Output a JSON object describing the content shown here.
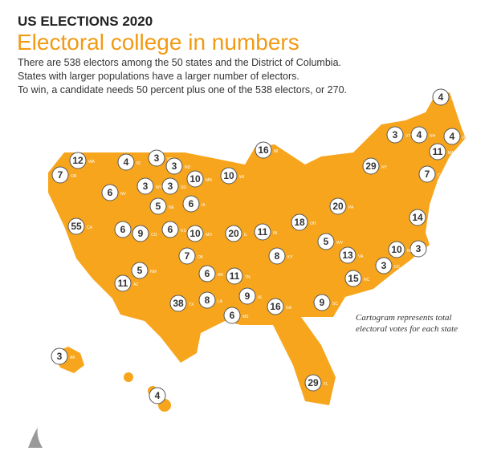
{
  "header": {
    "kicker": "US ELECTIONS 2020",
    "title": "Electoral college in numbers",
    "description": [
      "There are 538 electors among the 50 states and the District of Columbia.",
      "States with larger populations have a larger number of electors.",
      "To win, a candidate needs 50 percent plus one of the 538 electors, or 270."
    ]
  },
  "map": {
    "caption": [
      "Cartogram represents total",
      "electoral votes for each state"
    ],
    "states": [
      {
        "abbr": "WA",
        "votes": 12
      },
      {
        "abbr": "OR",
        "votes": 7
      },
      {
        "abbr": "CA",
        "votes": 55
      },
      {
        "abbr": "NV",
        "votes": 6
      },
      {
        "abbr": "ID",
        "votes": 4
      },
      {
        "abbr": "MT",
        "votes": 3
      },
      {
        "abbr": "ND",
        "votes": 3
      },
      {
        "abbr": "WY",
        "votes": 3
      },
      {
        "abbr": "SD",
        "votes": 3
      },
      {
        "abbr": "UT",
        "votes": 6
      },
      {
        "abbr": "CO",
        "votes": 9
      },
      {
        "abbr": "NE",
        "votes": 5
      },
      {
        "abbr": "AZ",
        "votes": 11
      },
      {
        "abbr": "NM",
        "votes": 5
      },
      {
        "abbr": "KS",
        "votes": 6
      },
      {
        "abbr": "IA",
        "votes": 6
      },
      {
        "abbr": "MN",
        "votes": 10
      },
      {
        "abbr": "WI",
        "votes": 10
      },
      {
        "abbr": "MO",
        "votes": 10
      },
      {
        "abbr": "IL",
        "votes": 20
      },
      {
        "abbr": "IN",
        "votes": 11
      },
      {
        "abbr": "OK",
        "votes": 7
      },
      {
        "abbr": "TX",
        "votes": 38
      },
      {
        "abbr": "AR",
        "votes": 6
      },
      {
        "abbr": "LA",
        "votes": 8
      },
      {
        "abbr": "MS",
        "votes": 6
      },
      {
        "abbr": "TN",
        "votes": 11
      },
      {
        "abbr": "AL",
        "votes": 9
      },
      {
        "abbr": "KY",
        "votes": 8
      },
      {
        "abbr": "MI",
        "votes": 16
      },
      {
        "abbr": "OH",
        "votes": 18
      },
      {
        "abbr": "WV",
        "votes": 5
      },
      {
        "abbr": "GA",
        "votes": 16
      },
      {
        "abbr": "FL",
        "votes": 29
      },
      {
        "abbr": "SC",
        "votes": 9
      },
      {
        "abbr": "NC",
        "votes": 15
      },
      {
        "abbr": "VA",
        "votes": 13
      },
      {
        "abbr": "PA",
        "votes": 20
      },
      {
        "abbr": "NY",
        "votes": 29
      },
      {
        "abbr": "NJ",
        "votes": 14
      },
      {
        "abbr": "DE",
        "votes": 3
      },
      {
        "abbr": "MD",
        "votes": 10
      },
      {
        "abbr": "DC",
        "votes": 3
      },
      {
        "abbr": "CT",
        "votes": 7
      },
      {
        "abbr": "MA",
        "votes": 11
      },
      {
        "abbr": "VT",
        "votes": 3
      },
      {
        "abbr": "NH",
        "votes": 4
      },
      {
        "abbr": "RI",
        "votes": 4
      },
      {
        "abbr": "ME",
        "votes": 4
      },
      {
        "abbr": "HI",
        "votes": 4
      },
      {
        "abbr": "AK",
        "votes": 3
      }
    ]
  }
}
